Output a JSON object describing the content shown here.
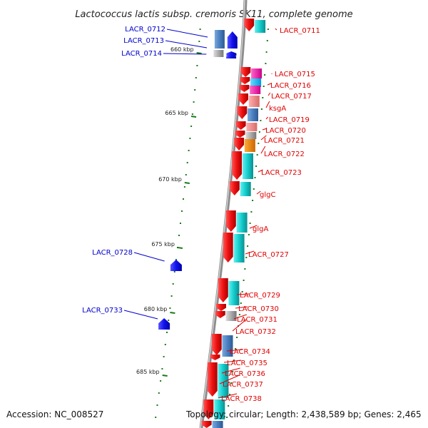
{
  "title": "Lactococcus lactis subsp. cremoris SK11, complete genome",
  "footer": {
    "accession": "Accession: NC_008527",
    "topology": "Topology: circular; Length: 2,438,589 bp; Genes: 2,465"
  },
  "axis_ticks": [
    "660 kbp",
    "665 kbp",
    "670 kbp",
    "675 kbp",
    "680 kbp",
    "685 kbp"
  ],
  "genes_right": [
    "LACR_0711",
    "LACR_0715",
    "LACR_0716",
    "LACR_0717",
    "ksgA",
    "LACR_0719",
    "LACR_0720",
    "LACR_0721",
    "LACR_0722",
    "LACR_0723",
    "glgC",
    "glgA",
    "LACR_0727",
    "LACR_0729",
    "LACR_0730",
    "LACR_0731",
    "LACR_0732",
    "LACR_0734",
    "LACR_0735",
    "LACR_0736",
    "LACR_0737",
    "LACR_0738"
  ],
  "genes_left": [
    "LACR_0712",
    "LACR_0713",
    "LACR_0714",
    "LACR_0728",
    "LACR_0733"
  ],
  "colors": {
    "forward_gene": "#ee1111",
    "reverse_gene": "#1111ee",
    "right_label": "#e00000",
    "left_label": "#0000cc",
    "tick": "#1a7a1a",
    "backbone": "#9a9a9a",
    "cog_cyan": "#12cccc",
    "cog_steelblue": "#4a7fc0",
    "cog_magenta": "#ee22aa",
    "cog_pink": "#f08a8a",
    "cog_orange": "#ee8800",
    "cog_gray": "#9a9a9a"
  }
}
